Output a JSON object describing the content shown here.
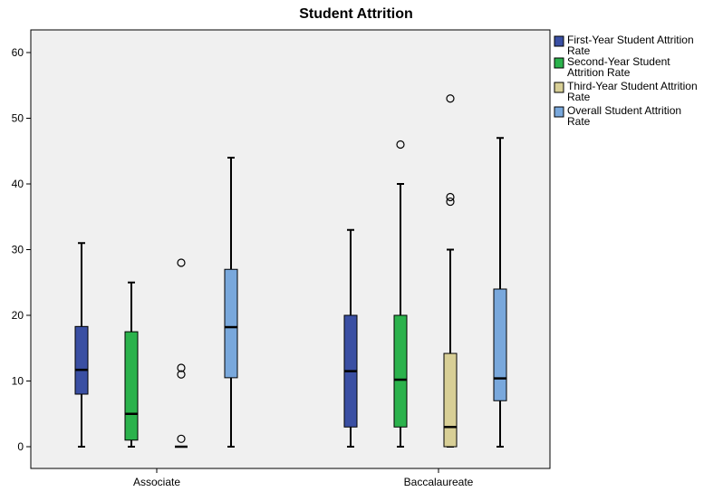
{
  "chart_data": {
    "type": "boxplot",
    "title": "Student Attrition",
    "xlabel": "",
    "ylabel": "",
    "ylim": [
      -3,
      63
    ],
    "yticks": [
      0,
      10,
      20,
      30,
      40,
      50,
      60
    ],
    "categories": [
      "Associate",
      "Baccalaureate"
    ],
    "legend_position": "right",
    "series": [
      {
        "name": "First-Year Student Attrition Rate",
        "color": "#3a4fa3",
        "boxes": [
          {
            "category": "Associate",
            "min": 0,
            "q1": 8,
            "median": 11.7,
            "q3": 18.3,
            "max": 31,
            "outliers": []
          },
          {
            "category": "Baccalaureate",
            "min": 0,
            "q1": 3,
            "median": 11.5,
            "q3": 20,
            "max": 33,
            "outliers": []
          }
        ]
      },
      {
        "name": "Second-Year Student Attrition Rate",
        "color": "#2bb24c",
        "boxes": [
          {
            "category": "Associate",
            "min": 0,
            "q1": 1,
            "median": 5,
            "q3": 17.5,
            "max": 25,
            "outliers": []
          },
          {
            "category": "Baccalaureate",
            "min": 0,
            "q1": 3,
            "median": 10.2,
            "q3": 20,
            "max": 40,
            "outliers": [
              46
            ]
          }
        ]
      },
      {
        "name": "Third-Year Student Attrition Rate",
        "color": "#d8cf96",
        "boxes": [
          {
            "category": "Associate",
            "min": 0,
            "q1": 0,
            "median": 0,
            "q3": 0,
            "max": 0,
            "outliers": [
              1.2,
              11,
              12,
              28
            ]
          },
          {
            "category": "Baccalaureate",
            "min": 0,
            "q1": 0,
            "median": 3,
            "q3": 14.2,
            "max": 30,
            "outliers": [
              37.3,
              38,
              53
            ]
          }
        ]
      },
      {
        "name": "Overall Student Attrition Rate",
        "color": "#79a8dc",
        "boxes": [
          {
            "category": "Associate",
            "min": 0,
            "q1": 10.5,
            "median": 18.2,
            "q3": 27,
            "max": 44,
            "outliers": []
          },
          {
            "category": "Baccalaureate",
            "min": 0,
            "q1": 7,
            "median": 10.4,
            "q3": 24,
            "max": 47,
            "outliers": []
          }
        ]
      }
    ],
    "legend_labels": [
      [
        "First-Year Student Attrition",
        "Rate"
      ],
      [
        "Second-Year Student",
        "Attrition Rate"
      ],
      [
        "Third-Year Student Attrition",
        "Rate"
      ],
      [
        "Overall Student Attrition",
        "Rate"
      ]
    ]
  }
}
